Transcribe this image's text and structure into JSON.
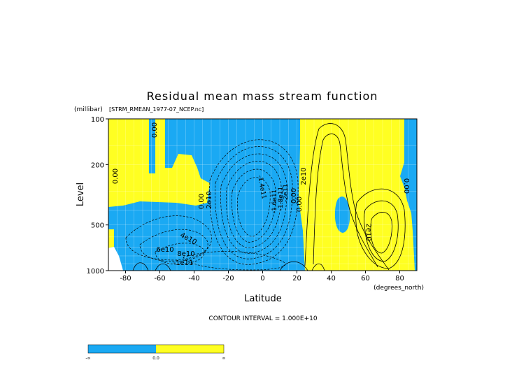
{
  "chart_data": {
    "type": "contour",
    "title": "Residual mean mass stream function",
    "subtitle": "[STRM_RMEAN_1977-07_NCEP.nc]",
    "ylabel": "Level",
    "yunits": "(millibar)",
    "xlabel": "Latitude",
    "xunits": "(degrees_north)",
    "xlim": [
      -90,
      90
    ],
    "ylim": [
      1000,
      100
    ],
    "y_scale": "log",
    "x_ticks": [
      -80,
      -60,
      -40,
      -20,
      0,
      20,
      40,
      60,
      80
    ],
    "x_tick_labels": [
      "-80",
      "-60",
      "-40",
      "-20",
      "0",
      "20",
      "40",
      "60",
      "80"
    ],
    "y_ticks": [
      100,
      200,
      500,
      1000
    ],
    "y_tick_labels": [
      "100",
      "200",
      "500",
      "1000"
    ],
    "grid": true,
    "contour_interval_text": "CONTOUR INTERVAL = 1.000E+10",
    "contour_labels": [
      "0.00",
      "0.00",
      "0.00",
      "0.00",
      "0.00",
      "0.00",
      "2e10",
      "2e10",
      "2e10",
      "4e10",
      "6e10",
      "8e10",
      "-1e11",
      "-1.4e11",
      "-1.6e11",
      "-1.8e11",
      "-2e11"
    ],
    "fill_colors": {
      "negative": "#1aa9f3",
      "positive": "#ffff22"
    },
    "colorbar": {
      "labels": [
        "-∞",
        "0.0",
        "∞"
      ],
      "colors": [
        "#1aa9f3",
        "#ffff22"
      ]
    }
  }
}
